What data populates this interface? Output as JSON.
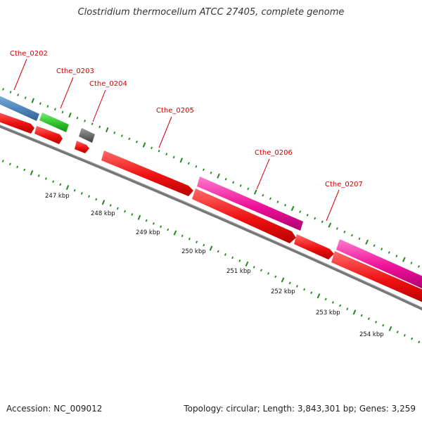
{
  "title": "Clostridium thermocellum ATCC 27405, complete genome",
  "accession": "Accession: NC_009012",
  "summary": "Topology: circular; Length: 3,843,301 bp; Genes: 3,259",
  "colors": {
    "cog_blue": "#4f87be",
    "cog_green": "#2ec42a",
    "cog_gray": "#6b6b6b",
    "cog_red": "#ee1111",
    "cog_magenta": "#ee1199",
    "backbone": "#888888",
    "tick_green": "#1e8a1e",
    "label_red": "#d00000"
  },
  "gene_labels": [
    "Cthe_0202",
    "Cthe_0203",
    "Cthe_0204",
    "Cthe_0205",
    "Cthe_0206",
    "Cthe_0207"
  ],
  "scale_labels": [
    "247 kbp",
    "248 kbp",
    "249 kbp",
    "250 kbp",
    "251 kbp",
    "252 kbp",
    "253 kbp",
    "254 kbp"
  ]
}
